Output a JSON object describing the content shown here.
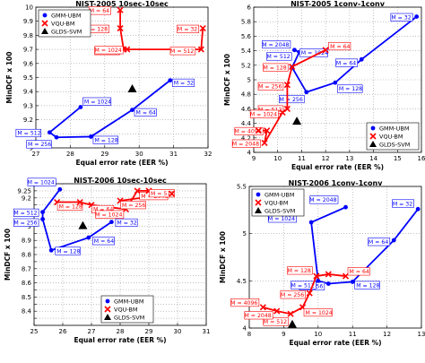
{
  "chart_data": [
    {
      "type": "scatter",
      "title": "NIST-2005 10sec-10sec",
      "xlabel": "Equal error rate (EER %)",
      "ylabel": "MinDCF x 100",
      "xlim": [
        27,
        32
      ],
      "ylim": [
        9.0,
        10.0
      ],
      "xticks": [
        27,
        28,
        29,
        30,
        31,
        32
      ],
      "yticks": [
        9.0,
        9.1,
        9.2,
        9.3,
        9.4,
        9.5,
        9.6,
        9.7,
        9.8,
        9.9,
        10.0
      ],
      "grid": true,
      "legend_position": "top-left",
      "series": [
        {
          "name": "GMM-UBM",
          "color": "#0000ff",
          "marker": "dot",
          "points": [
            {
              "x": 28.3,
              "y": 9.29,
              "label": "M = 1024"
            },
            {
              "x": 27.4,
              "y": 9.11,
              "label": "M = 512"
            },
            {
              "x": 27.6,
              "y": 9.075,
              "label": "M = 256"
            },
            {
              "x": 28.6,
              "y": 9.08,
              "label": "M = 128"
            },
            {
              "x": 29.8,
              "y": 9.27,
              "label": "M = 64"
            },
            {
              "x": 30.9,
              "y": 9.48,
              "label": "M = 32"
            }
          ]
        },
        {
          "name": "VQU-BM",
          "color": "#ff0000",
          "marker": "cross",
          "points": [
            {
              "x": 29.45,
              "y": 9.98,
              "label": "M = 64"
            },
            {
              "x": 29.45,
              "y": 9.85,
              "label": "M = 128"
            },
            {
              "x": 29.55,
              "y": 9.7,
              "label": "M = 256"
            },
            {
              "x": 29.65,
              "y": 9.7,
              "label": "M = 1024"
            },
            {
              "x": 31.8,
              "y": 9.7,
              "label": "M = 512"
            },
            {
              "x": 31.85,
              "y": 9.85,
              "label": "M = 32"
            }
          ]
        },
        {
          "name": "GLDS-SVM",
          "color": "#000000",
          "marker": "triangle",
          "points": [
            {
              "x": 29.8,
              "y": 9.42
            }
          ]
        }
      ]
    },
    {
      "type": "scatter",
      "title": "NIST-2005 1conv-1conv",
      "xlabel": "Equal error rate (EER %)",
      "ylabel": "MinDCF x 100",
      "xlim": [
        9,
        16
      ],
      "ylim": [
        4.0,
        6.0
      ],
      "xticks": [
        9,
        10,
        11,
        12,
        13,
        14,
        15,
        16
      ],
      "yticks": [
        4.0,
        4.2,
        4.4,
        4.6,
        4.8,
        5.0,
        5.2,
        5.4,
        5.6,
        5.8,
        6.0
      ],
      "grid": true,
      "legend_position": "bottom-right",
      "series": [
        {
          "name": "GMM-UBM",
          "color": "#0000ff",
          "marker": "dot",
          "points": [
            {
              "x": 15.8,
              "y": 5.87,
              "label": "M = 32"
            },
            {
              "x": 13.5,
              "y": 5.28,
              "label": "M = 64"
            },
            {
              "x": 12.4,
              "y": 4.96,
              "label": "M = 128"
            },
            {
              "x": 11.2,
              "y": 4.83,
              "label": "M = 256"
            },
            {
              "x": 10.6,
              "y": 5.17,
              "label": "M = 512"
            },
            {
              "x": 10.9,
              "y": 5.38,
              "label": "M = 1024"
            },
            {
              "x": 10.7,
              "y": 5.41,
              "label": "M = 2048"
            }
          ]
        },
        {
          "name": "VQU-BM",
          "color": "#ff0000",
          "marker": "cross",
          "points": [
            {
              "x": 12.0,
              "y": 5.41,
              "label": "M = 64"
            },
            {
              "x": 10.6,
              "y": 5.18,
              "label": "M = 128"
            },
            {
              "x": 10.4,
              "y": 4.93,
              "label": "M = 256"
            },
            {
              "x": 10.4,
              "y": 4.6,
              "label": "M = 512"
            },
            {
              "x": 10.2,
              "y": 4.55,
              "label": "M = 1024"
            },
            {
              "x": 9.45,
              "y": 4.13,
              "label": "M = 2048"
            },
            {
              "x": 9.55,
              "y": 4.3,
              "label": "M = 4096"
            },
            {
              "x": 9.2,
              "y": 4.3
            }
          ]
        },
        {
          "name": "GLDS-SVM",
          "color": "#000000",
          "marker": "triangle",
          "points": [
            {
              "x": 10.8,
              "y": 4.43
            }
          ]
        }
      ]
    },
    {
      "type": "scatter",
      "title": "NIST-2006 10sec-10sec",
      "xlabel": "Equal error rate (EER %)",
      "ylabel": "MinDCF x 100",
      "xlim": [
        25,
        31
      ],
      "ylim": [
        8.3,
        9.3
      ],
      "xticks": [
        25,
        26,
        27,
        28,
        29,
        30,
        31
      ],
      "yticks": [
        8.3,
        8.35,
        8.4,
        8.45,
        8.5,
        8.55,
        8.6,
        8.65,
        8.7,
        8.75,
        8.8,
        8.85,
        8.9,
        8.95,
        9.0,
        9.05,
        9.1,
        9.15,
        9.2,
        9.25,
        9.3
      ],
      "ytick_labels": [
        "",
        "",
        "8.4",
        "",
        "8.5",
        "",
        "8.6",
        "",
        "8.7",
        "",
        "8.8",
        "",
        "8.9",
        "",
        "9",
        "",
        "9.1",
        "",
        "9.2",
        "9.25",
        ""
      ],
      "grid": true,
      "legend_position": "bottom-center",
      "series": [
        {
          "name": "GMM-UBM",
          "color": "#0000ff",
          "marker": "dot",
          "points": [
            {
              "x": 25.9,
              "y": 9.26,
              "label": "M = 1024"
            },
            {
              "x": 25.3,
              "y": 9.1,
              "label": "M = 512"
            },
            {
              "x": 25.3,
              "y": 9.05,
              "label": "M = 256"
            },
            {
              "x": 25.6,
              "y": 8.83,
              "label": "M = 128"
            },
            {
              "x": 26.9,
              "y": 8.92,
              "label": "M = 64"
            },
            {
              "x": 27.7,
              "y": 9.03,
              "label": "M = 32"
            }
          ]
        },
        {
          "name": "VQU-BM",
          "color": "#ff0000",
          "marker": "cross",
          "points": [
            {
              "x": 25.8,
              "y": 9.17,
              "label": "M = 128"
            },
            {
              "x": 26.6,
              "y": 9.17
            },
            {
              "x": 27.0,
              "y": 9.15,
              "label": "M = 64"
            },
            {
              "x": 28.2,
              "y": 9.12,
              "label": "M = 1024"
            },
            {
              "x": 28.6,
              "y": 9.25,
              "label": "M = 2048"
            },
            {
              "x": 29.0,
              "y": 9.25,
              "label": "M = 512"
            },
            {
              "x": 29.8,
              "y": 9.23
            },
            {
              "x": 28.0,
              "y": 9.18,
              "label": "M = 256"
            }
          ]
        },
        {
          "name": "GLDS-SVM",
          "color": "#000000",
          "marker": "triangle",
          "points": [
            {
              "x": 26.7,
              "y": 9.005
            }
          ]
        }
      ]
    },
    {
      "type": "scatter",
      "title": "NIST-2006 1conv-1conv",
      "xlabel": "Equal error rate (EER %)",
      "ylabel": "MinDCF x 100",
      "xlim": [
        8,
        13
      ],
      "ylim": [
        4.0,
        5.5
      ],
      "xticks": [
        8,
        9,
        10,
        11,
        12,
        13
      ],
      "yticks": [
        4.0,
        4.5,
        5.0,
        5.5
      ],
      "grid": true,
      "legend_position": "top-left",
      "series": [
        {
          "name": "GMM-UBM",
          "color": "#0000ff",
          "marker": "dot",
          "points": [
            {
              "x": 12.9,
              "y": 5.26,
              "label": "M = 32"
            },
            {
              "x": 12.2,
              "y": 4.93,
              "label": "M = 64"
            },
            {
              "x": 11.0,
              "y": 4.49,
              "label": "M = 128"
            },
            {
              "x": 10.3,
              "y": 4.47,
              "label": "M = 256"
            },
            {
              "x": 10.0,
              "y": 4.5,
              "label": "M = 512"
            },
            {
              "x": 9.8,
              "y": 5.12,
              "label": "M = 1024"
            },
            {
              "x": 10.8,
              "y": 5.28,
              "label": "M = 2048"
            }
          ]
        },
        {
          "name": "VQU-BM",
          "color": "#ff0000",
          "marker": "cross",
          "points": [
            {
              "x": 10.8,
              "y": 4.55,
              "label": "M = 64"
            },
            {
              "x": 10.3,
              "y": 4.57
            },
            {
              "x": 9.95,
              "y": 4.55,
              "label": "M = 128"
            },
            {
              "x": 9.75,
              "y": 4.37,
              "label": "M = 256"
            },
            {
              "x": 9.55,
              "y": 4.22,
              "label": "M = 1024"
            },
            {
              "x": 9.2,
              "y": 4.15,
              "label": "M = 512"
            },
            {
              "x": 8.8,
              "y": 4.18,
              "label": "M = 2048"
            },
            {
              "x": 8.4,
              "y": 4.22,
              "label": "M = 4096"
            }
          ]
        },
        {
          "name": "GLDS-SVM",
          "color": "#000000",
          "marker": "triangle",
          "points": [
            {
              "x": 9.25,
              "y": 4.04
            }
          ]
        }
      ]
    }
  ]
}
